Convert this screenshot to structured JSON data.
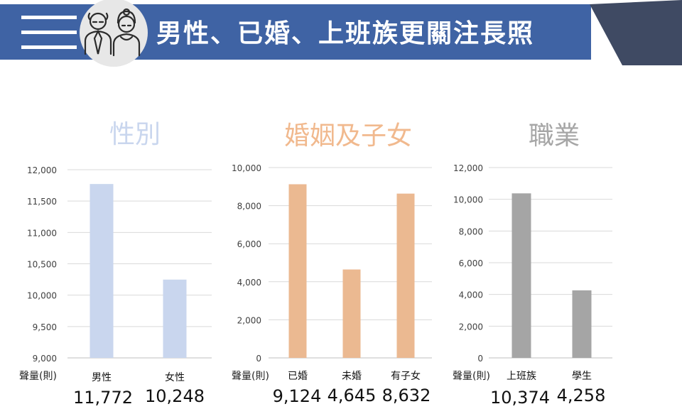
{
  "banner": {
    "title": "男性、已婚、上班族更關注長照",
    "icon": "elderly-couple-icon",
    "colors": {
      "bar": "#3f63a4",
      "accent": "#3f4a63"
    }
  },
  "chart_data": [
    {
      "type": "bar",
      "title": "性別",
      "title_color": "#c9d6ee",
      "color": "#c9d6ee",
      "ylabel": "聲量(則)",
      "categories": [
        "男性",
        "女性"
      ],
      "values": [
        11772,
        10248
      ],
      "value_labels": [
        "11,772",
        "10,248"
      ],
      "ylim": [
        9000,
        12000
      ],
      "yticks": [
        9000,
        9500,
        10000,
        10500,
        11000,
        11500,
        12000
      ],
      "ytick_labels": [
        "9,000",
        "9,500",
        "10,000",
        "10,500",
        "11,000",
        "11,500",
        "12,000"
      ],
      "grid": true
    },
    {
      "type": "bar",
      "title": "婚姻及子女",
      "title_color": "#f1b98e",
      "color": "#ebb991",
      "ylabel": "聲量(則)",
      "categories": [
        "已婚",
        "未婚",
        "有子女"
      ],
      "values": [
        9124,
        4645,
        8632
      ],
      "value_labels": [
        "9,124",
        "4,645",
        "8,632"
      ],
      "ylim": [
        0,
        10000
      ],
      "yticks": [
        0,
        2000,
        4000,
        6000,
        8000,
        10000
      ],
      "ytick_labels": [
        "0",
        "2,000",
        "4,000",
        "6,000",
        "8,000",
        "10,000"
      ],
      "grid": true
    },
    {
      "type": "bar",
      "title": "職業",
      "title_color": "#a6a6a6",
      "color": "#a5a5a5",
      "ylabel": "聲量(則)",
      "categories": [
        "上班族",
        "學生"
      ],
      "values": [
        10374,
        4258
      ],
      "value_labels": [
        "10,374",
        "4,258"
      ],
      "ylim": [
        0,
        12000
      ],
      "yticks": [
        0,
        2000,
        4000,
        6000,
        8000,
        10000,
        12000
      ],
      "ytick_labels": [
        "0",
        "2,000",
        "4,000",
        "6,000",
        "8,000",
        "10,000",
        "12,000"
      ],
      "grid": true
    }
  ]
}
